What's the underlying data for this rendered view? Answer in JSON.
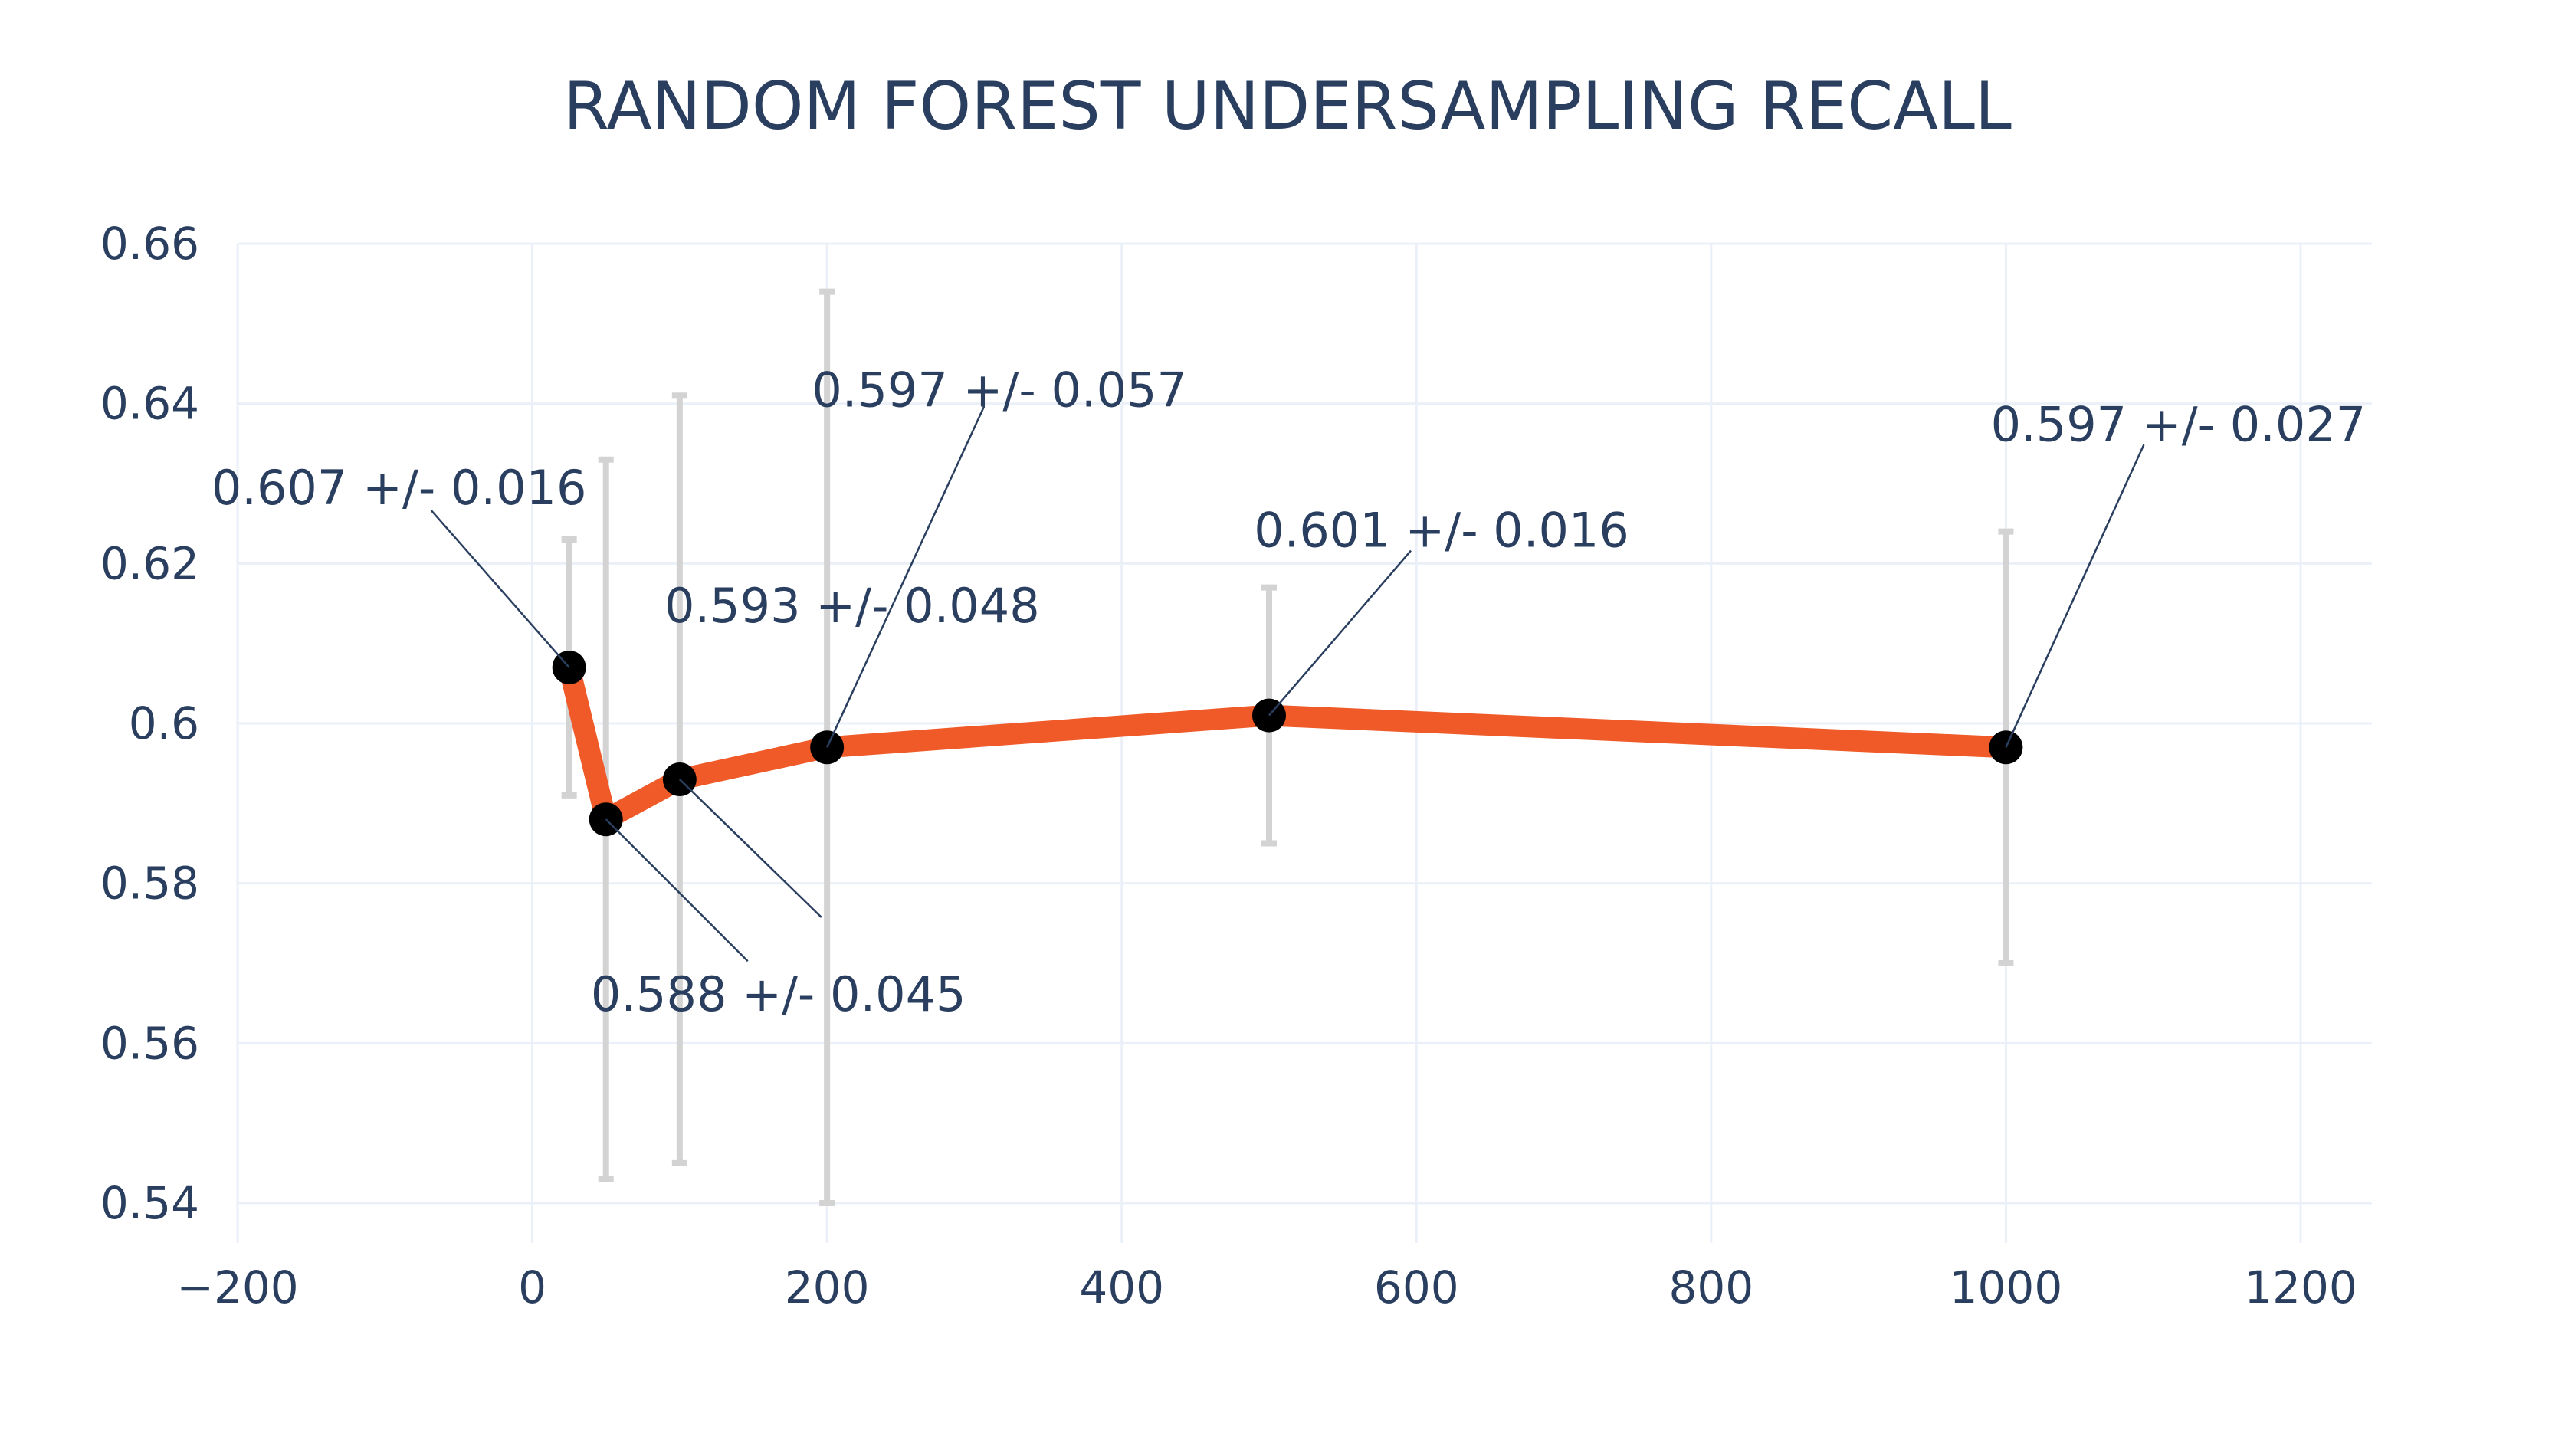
{
  "chart_data": {
    "type": "line",
    "title": "RANDOM FOREST UNDERSAMPLING RECALL",
    "xlabel": "",
    "ylabel": "",
    "xlim": [
      -200,
      1250
    ],
    "ylim": [
      0.535,
      0.66
    ],
    "x_ticks": [
      -200,
      0,
      200,
      400,
      600,
      800,
      1000,
      1200
    ],
    "x_tick_labels": [
      "−200",
      "0",
      "200",
      "400",
      "600",
      "800",
      "1000",
      "1200"
    ],
    "y_ticks": [
      0.54,
      0.56,
      0.58,
      0.6,
      0.62,
      0.64,
      0.66
    ],
    "y_tick_labels": [
      "0.54",
      "0.56",
      "0.58",
      "0.6",
      "0.62",
      "0.64",
      "0.66"
    ],
    "grid": true,
    "colors": {
      "line": "#ef5a28",
      "marker": "#000000",
      "error_bar": "#d3d3d3",
      "grid": "#ebf0f8",
      "text": "#2a3f5f"
    },
    "series": [
      {
        "x": [
          25,
          50,
          100,
          200,
          500,
          1000
        ],
        "y": [
          0.607,
          0.588,
          0.593,
          0.597,
          0.601,
          0.597
        ],
        "error": [
          0.016,
          0.045,
          0.048,
          0.057,
          0.016,
          0.027
        ]
      }
    ],
    "annotations": [
      {
        "x": 25,
        "y": 0.607,
        "text": "0.607 +/- 0.016"
      },
      {
        "x": 50,
        "y": 0.588,
        "text": "0.588 +/- 0.045"
      },
      {
        "x": 100,
        "y": 0.593,
        "text": "0.593 +/- 0.048"
      },
      {
        "x": 200,
        "y": 0.597,
        "text": "0.597 +/- 0.057"
      },
      {
        "x": 500,
        "y": 0.601,
        "text": "0.601 +/- 0.016"
      },
      {
        "x": 1000,
        "y": 0.597,
        "text": "0.597 +/- 0.027"
      }
    ]
  }
}
